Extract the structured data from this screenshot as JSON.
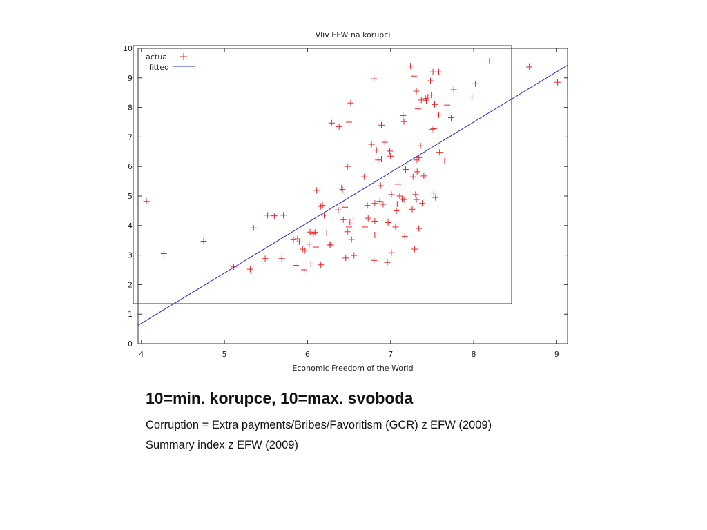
{
  "chart_data": {
    "type": "scatter",
    "title": "Vliv EFW na korupci",
    "xlabel": "Economic Freedom of the World",
    "ylabel": "",
    "xlim": [
      3.96,
      9.13
    ],
    "ylim": [
      0,
      10
    ],
    "xticks": [
      4,
      5,
      6,
      7,
      8,
      9
    ],
    "yticks": [
      0,
      1,
      2,
      3,
      4,
      5,
      6,
      7,
      8,
      9,
      10
    ],
    "grid": false,
    "legend": "top-left",
    "colors": {
      "actual": "#e8262a",
      "fitted": "#2b2bd6",
      "frame": "#333333"
    },
    "series": [
      {
        "name": "actual",
        "marker": "plus",
        "points": [
          [
            4.06,
            4.82
          ],
          [
            4.27,
            3.05
          ],
          [
            4.75,
            3.47
          ],
          [
            5.11,
            2.6
          ],
          [
            5.31,
            2.52
          ],
          [
            5.35,
            3.92
          ],
          [
            5.49,
            2.88
          ],
          [
            5.52,
            4.35
          ],
          [
            5.6,
            4.33
          ],
          [
            5.69,
            2.88
          ],
          [
            5.71,
            4.35
          ],
          [
            5.83,
            3.52
          ],
          [
            5.86,
            2.65
          ],
          [
            5.88,
            3.55
          ],
          [
            5.9,
            3.45
          ],
          [
            5.94,
            3.2
          ],
          [
            5.96,
            2.5
          ],
          [
            5.97,
            3.15
          ],
          [
            6.02,
            3.37
          ],
          [
            6.03,
            3.78
          ],
          [
            6.04,
            2.7
          ],
          [
            6.07,
            3.72
          ],
          [
            6.09,
            3.77
          ],
          [
            6.1,
            3.27
          ],
          [
            6.11,
            5.19
          ],
          [
            6.15,
            5.2
          ],
          [
            6.15,
            4.8
          ],
          [
            6.16,
            2.67
          ],
          [
            6.16,
            4.65
          ],
          [
            6.18,
            4.68
          ],
          [
            6.2,
            4.35
          ],
          [
            6.23,
            3.75
          ],
          [
            6.27,
            3.34
          ],
          [
            6.28,
            3.37
          ],
          [
            6.29,
            7.47
          ],
          [
            6.37,
            4.53
          ],
          [
            6.38,
            7.35
          ],
          [
            6.41,
            5.27
          ],
          [
            6.42,
            5.22
          ],
          [
            6.43,
            4.2
          ],
          [
            6.45,
            4.62
          ],
          [
            6.46,
            2.9
          ],
          [
            6.48,
            3.79
          ],
          [
            6.48,
            6.0
          ],
          [
            6.5,
            3.95
          ],
          [
            6.5,
            7.5
          ],
          [
            6.51,
            4.12
          ],
          [
            6.52,
            8.15
          ],
          [
            6.53,
            3.53
          ],
          [
            6.55,
            4.22
          ],
          [
            6.56,
            2.99
          ],
          [
            6.68,
            5.65
          ],
          [
            6.69,
            3.95
          ],
          [
            6.72,
            4.68
          ],
          [
            6.73,
            4.25
          ],
          [
            6.77,
            6.75
          ],
          [
            6.8,
            8.97
          ],
          [
            6.8,
            2.82
          ],
          [
            6.81,
            3.68
          ],
          [
            6.81,
            4.75
          ],
          [
            6.81,
            4.15
          ],
          [
            6.83,
            6.55
          ],
          [
            6.85,
            6.22
          ],
          [
            6.87,
            4.82
          ],
          [
            6.88,
            5.35
          ],
          [
            6.89,
            6.25
          ],
          [
            6.89,
            7.4
          ],
          [
            6.91,
            4.72
          ],
          [
            6.93,
            6.82
          ],
          [
            6.96,
            2.75
          ],
          [
            6.97,
            4.1
          ],
          [
            6.99,
            6.52
          ],
          [
            7.0,
            6.35
          ],
          [
            7.01,
            5.05
          ],
          [
            7.01,
            3.08
          ],
          [
            7.06,
            3.95
          ],
          [
            7.07,
            4.5
          ],
          [
            7.08,
            4.73
          ],
          [
            7.09,
            5.4
          ],
          [
            7.11,
            5.0
          ],
          [
            7.14,
            4.9
          ],
          [
            7.15,
            7.72
          ],
          [
            7.16,
            7.52
          ],
          [
            7.16,
            4.88
          ],
          [
            7.17,
            3.63
          ],
          [
            7.18,
            5.9
          ],
          [
            7.24,
            9.4
          ],
          [
            7.26,
            4.55
          ],
          [
            7.27,
            5.65
          ],
          [
            7.28,
            9.06
          ],
          [
            7.29,
            3.2
          ],
          [
            7.3,
            5.05
          ],
          [
            7.31,
            6.22
          ],
          [
            7.31,
            8.55
          ],
          [
            7.31,
            4.88
          ],
          [
            7.32,
            5.82
          ],
          [
            7.33,
            7.95
          ],
          [
            7.34,
            3.9
          ],
          [
            7.34,
            6.3
          ],
          [
            7.36,
            6.7
          ],
          [
            7.37,
            8.25
          ],
          [
            7.38,
            4.75
          ],
          [
            7.4,
            5.68
          ],
          [
            7.42,
            8.3
          ],
          [
            7.43,
            8.22
          ],
          [
            7.45,
            8.35
          ],
          [
            7.48,
            8.9
          ],
          [
            7.49,
            8.42
          ],
          [
            7.5,
            7.25
          ],
          [
            7.51,
            9.2
          ],
          [
            7.52,
            7.28
          ],
          [
            7.52,
            5.1
          ],
          [
            7.53,
            8.1
          ],
          [
            7.54,
            4.95
          ],
          [
            7.58,
            9.2
          ],
          [
            7.58,
            7.75
          ],
          [
            7.59,
            6.48
          ],
          [
            7.65,
            6.18
          ],
          [
            7.68,
            8.08
          ],
          [
            7.73,
            7.65
          ],
          [
            7.76,
            8.6
          ],
          [
            7.98,
            8.35
          ],
          [
            8.02,
            8.8
          ],
          [
            8.19,
            9.57
          ],
          [
            8.67,
            9.37
          ],
          [
            9.01,
            8.85
          ]
        ]
      },
      {
        "name": "fitted",
        "type": "line",
        "points": [
          [
            3.96,
            0.62
          ],
          [
            9.13,
            9.43
          ]
        ]
      }
    ]
  },
  "text": {
    "heading": "10=min. korupce, 10=max. svoboda",
    "line1": "Corruption = Extra payments/Bribes/Favoritism (GCR) z EFW (2009)",
    "line2": "Summary index z EFW (2009)"
  }
}
